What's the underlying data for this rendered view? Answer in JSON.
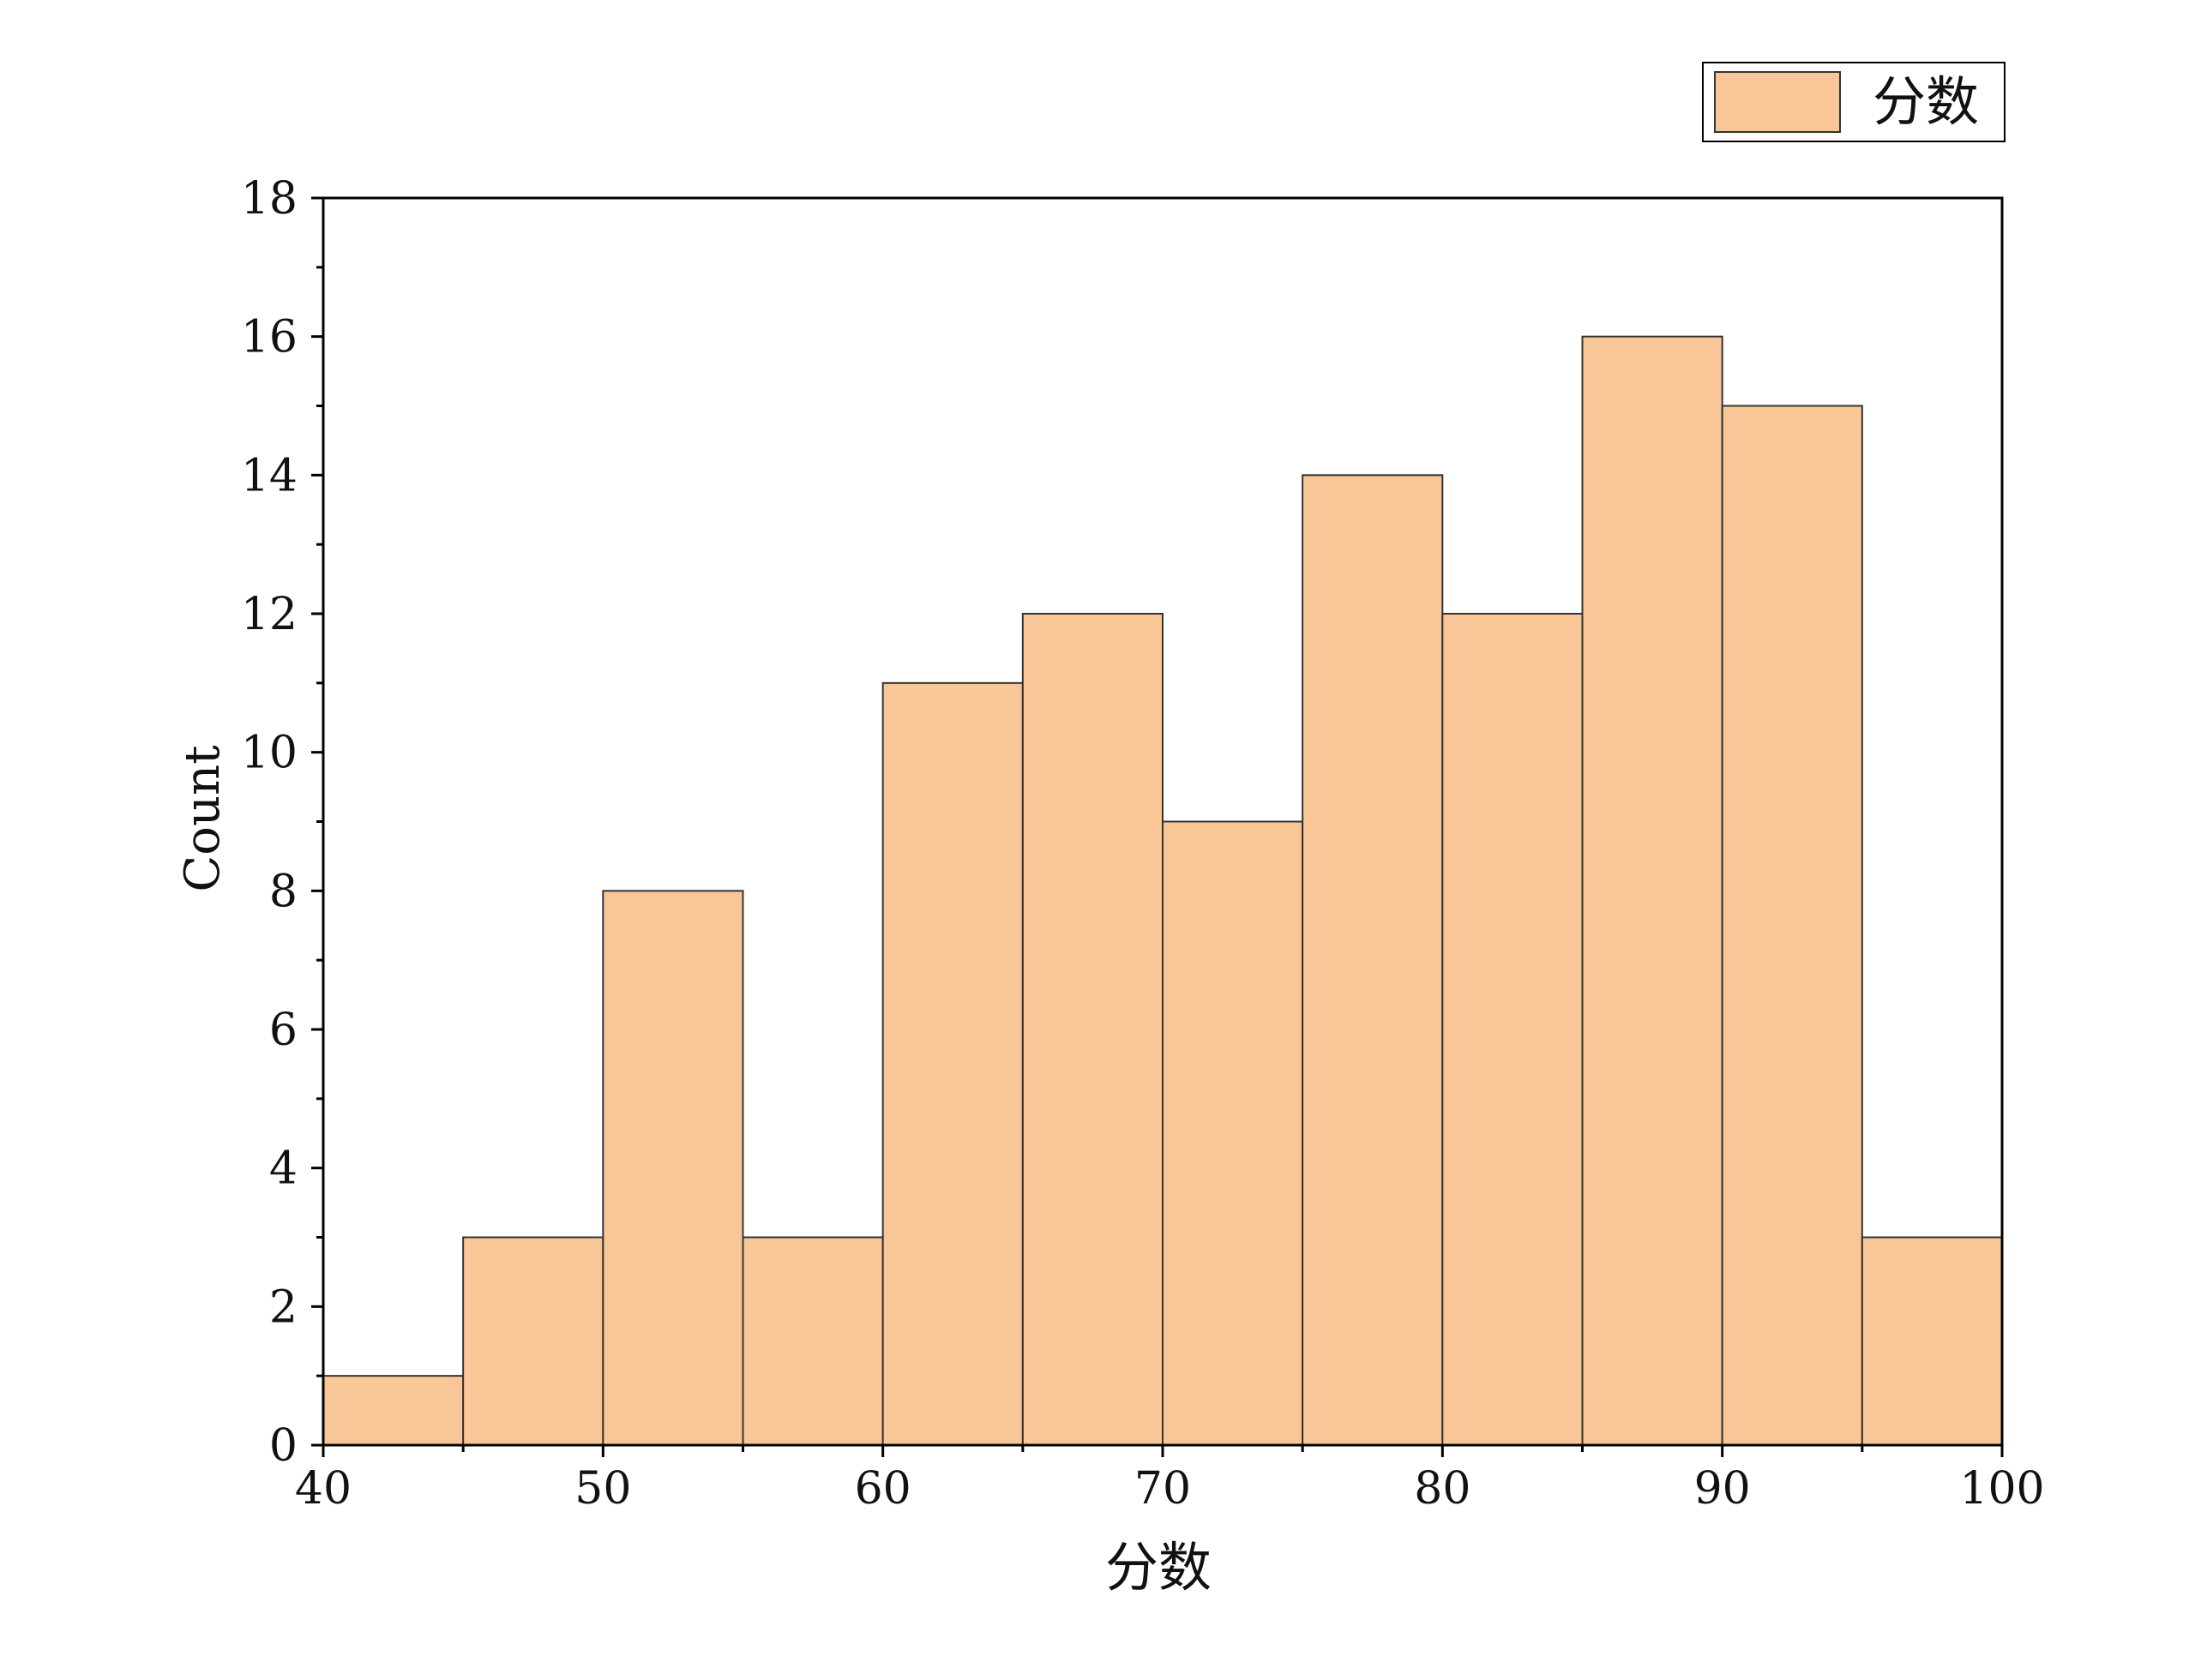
{
  "chart_data": {
    "type": "bar",
    "title": "",
    "xlabel": "分数",
    "ylabel": "Count",
    "bin_edges": [
      40,
      45,
      50,
      55,
      60,
      65,
      70,
      75,
      80,
      85,
      90,
      95,
      100
    ],
    "counts": [
      1,
      3,
      8,
      3,
      11,
      12,
      9,
      14,
      12,
      16,
      15,
      3
    ],
    "xlim": [
      40,
      100
    ],
    "ylim": [
      0,
      18
    ],
    "xticks": [
      "40",
      "50",
      "60",
      "70",
      "80",
      "90",
      "100"
    ],
    "yticks": [
      "0",
      "2",
      "4",
      "6",
      "8",
      "10",
      "12",
      "14",
      "16",
      "18"
    ],
    "legend": {
      "label": "分数",
      "position": "top-right"
    },
    "colors": {
      "bar_fill": "#f9c797",
      "bar_stroke": "#333333",
      "axis": "#000000"
    },
    "grid": false
  }
}
